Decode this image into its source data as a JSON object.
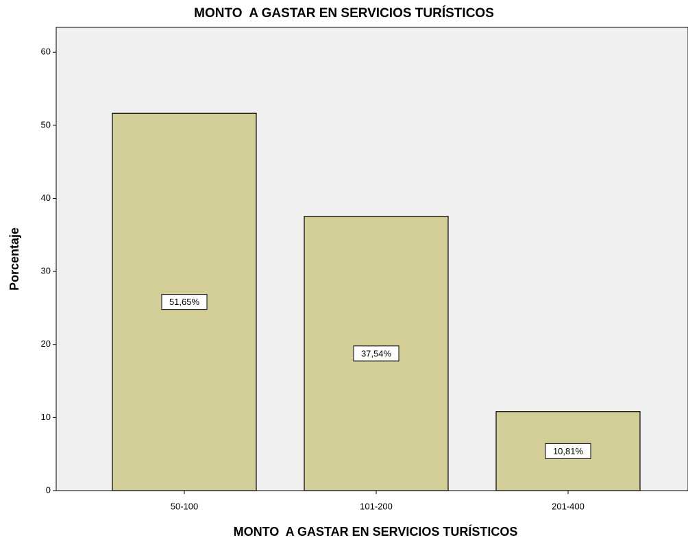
{
  "chart_data": {
    "type": "bar",
    "title": "MONTO  A GASTAR EN SERVICIOS TURÍSTICOS",
    "x_label": "MONTO  A GASTAR EN SERVICIOS TURÍSTICOS",
    "y_label": "Porcentaje",
    "categories": [
      "50-100",
      "101-200",
      "201-400"
    ],
    "values": [
      51.65,
      37.54,
      10.81
    ],
    "value_labels": [
      "51,65%",
      "37,54%",
      "10,81%"
    ],
    "color": "#d3ce97",
    "ylim": [
      0,
      63.4
    ],
    "yticks": [
      0,
      10,
      20,
      30,
      40,
      50,
      60
    ],
    "grid": false
  }
}
